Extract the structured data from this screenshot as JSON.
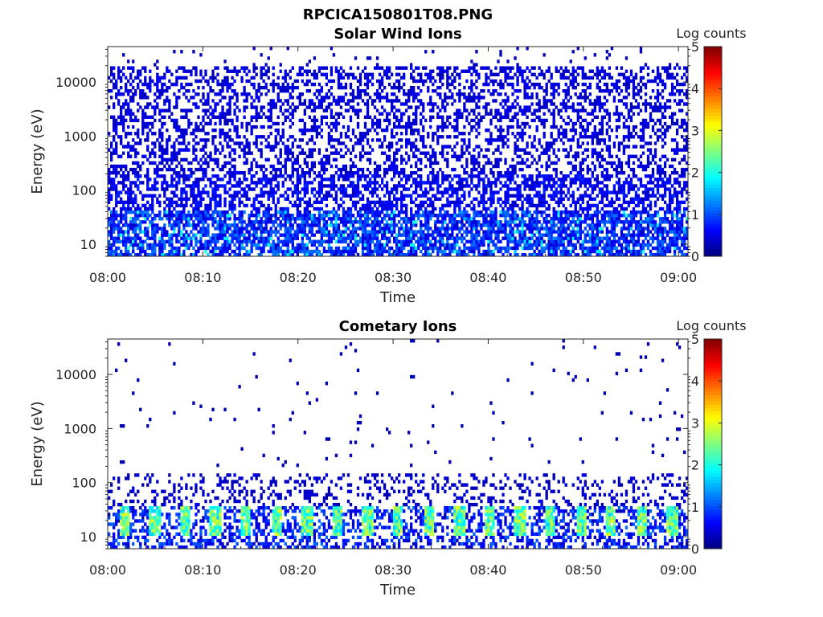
{
  "figure_title": "RPCICA150801T08.PNG",
  "chart_data": [
    {
      "type": "heatmap",
      "title": "Solar Wind Ions",
      "xlabel": "Time",
      "ylabel": "Energy (eV)",
      "x_ticks": [
        "08:00",
        "08:10",
        "08:20",
        "08:30",
        "08:40",
        "08:50",
        "09:00"
      ],
      "x_range_minutes": [
        0,
        61
      ],
      "y_ticks": [
        "10",
        "100",
        "1000",
        "10000"
      ],
      "y_tick_values": [
        10,
        100,
        1000,
        10000
      ],
      "y_scale": "log",
      "y_range_eV": [
        6,
        45000
      ],
      "colorbar": {
        "label": "Log counts",
        "ticks": [
          "0",
          "1",
          "2",
          "3",
          "4",
          "5"
        ],
        "range": [
          0,
          5
        ],
        "colormap": "jet"
      },
      "description_values": {
        "background_level_log_counts": 0.5,
        "peak_level_log_counts": 2.0,
        "peak_energy_band_eV": [
          10,
          40
        ]
      }
    },
    {
      "type": "heatmap",
      "title": "Cometary Ions",
      "xlabel": "Time",
      "ylabel": "Energy (eV)",
      "x_ticks": [
        "08:00",
        "08:10",
        "08:20",
        "08:30",
        "08:40",
        "08:50",
        "09:00"
      ],
      "x_range_minutes": [
        0,
        61
      ],
      "y_ticks": [
        "10",
        "100",
        "1000",
        "10000"
      ],
      "y_tick_values": [
        10,
        100,
        1000,
        10000
      ],
      "y_scale": "log",
      "y_range_eV": [
        6,
        45000
      ],
      "colorbar": {
        "label": "Log counts",
        "ticks": [
          "0",
          "1",
          "2",
          "3",
          "4",
          "5"
        ],
        "range": [
          0,
          5
        ],
        "colormap": "jet"
      },
      "description_values": {
        "background_level_log_counts": 0.3,
        "peak_level_log_counts": 3.0,
        "peak_energy_band_eV": [
          12,
          40
        ],
        "pulse_period_minutes": 3.2
      }
    }
  ]
}
